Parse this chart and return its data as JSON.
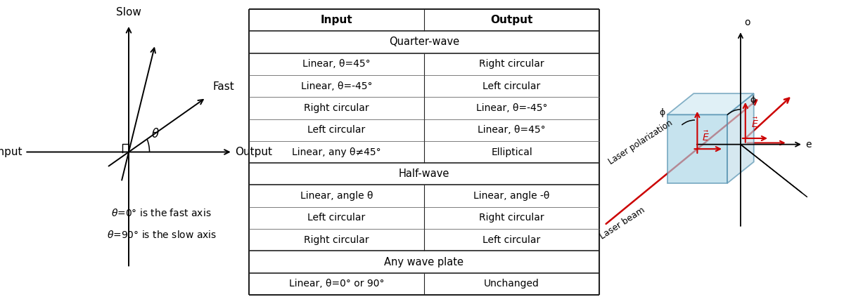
{
  "bg_color": "#ffffff",
  "table_data": {
    "col_headers": [
      "Input",
      "Output"
    ],
    "sections": [
      {
        "section_title": "Quarter-wave",
        "rows": [
          [
            "Linear, θ=45°",
            "Right circular"
          ],
          [
            "Linear, θ=-45°",
            "Left circular"
          ],
          [
            "Right circular",
            "Linear, θ=-45°"
          ],
          [
            "Left circular",
            "Linear, θ=45°"
          ],
          [
            "Linear, any θ≠45°",
            "Elliptical"
          ]
        ]
      },
      {
        "section_title": "Half-wave",
        "rows": [
          [
            "Linear, angle θ",
            "Linear, angle -θ"
          ],
          [
            "Left circular",
            "Right circular"
          ],
          [
            "Right circular",
            "Left circular"
          ]
        ]
      },
      {
        "section_title": "Any wave plate",
        "rows": [
          [
            "Linear, θ=0° or 90°",
            "Unchanged"
          ]
        ]
      }
    ]
  },
  "left_diagram": {
    "slow_label": "Slow",
    "fast_label": "Fast",
    "input_label": "Input",
    "output_label": "Output",
    "theta_label": "θ",
    "note1": "θ=0° is the fast axis",
    "note2": "θ=90° is the slow axis"
  },
  "right_diagram": {
    "o_label": "o",
    "e_label": "e",
    "phi_label": "ϕ",
    "laser_beam_label": "Laser beam",
    "laser_polarization_label": "Laser polarization",
    "crystal_face_color": "#a8d4e6",
    "crystal_right_color": "#c0dce8",
    "crystal_top_color": "#d0e8f2",
    "crystal_edge_color": "#4a8aaa",
    "arrow_color": "#cc0000",
    "axis_color": "#000000"
  }
}
